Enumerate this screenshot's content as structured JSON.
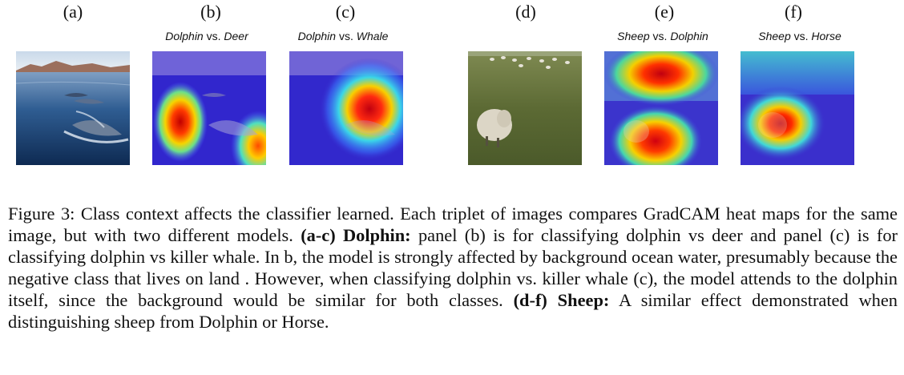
{
  "panels": [
    {
      "letter": "(a)",
      "subtitle_pre": "",
      "subtitle_vs": "",
      "subtitle_post": ""
    },
    {
      "letter": "(b)",
      "subtitle_pre": "Dolphin",
      "subtitle_vs": " vs. ",
      "subtitle_post": "Deer"
    },
    {
      "letter": "(c)",
      "subtitle_pre": "Dolphin",
      "subtitle_vs": " vs. ",
      "subtitle_post": "Whale"
    },
    {
      "letter": "(d)",
      "subtitle_pre": "",
      "subtitle_vs": "",
      "subtitle_post": ""
    },
    {
      "letter": "(e)",
      "subtitle_pre": "Sheep",
      "subtitle_vs": " vs. ",
      "subtitle_post": "Dolphin"
    },
    {
      "letter": "(f)",
      "subtitle_pre": "Sheep",
      "subtitle_vs": " vs. ",
      "subtitle_post": "Horse"
    }
  ],
  "caption": {
    "intro": "Figure 3: Class context affects the classifier learned. Each triplet of images compares GradCAM heat maps for the same image, but with two different models. ",
    "bold1": "(a-c) Dolphin:",
    "part2": " panel (b) is for classifying dolphin vs deer and panel (c) is for classifying dolphin vs killer whale. In b, the model is strongly affected by background ocean water, presumably because the negative class that lives on land . However, when classifying dolphin vs. killer whale (c), the model attends to the dolphin itself, since the background would be similar for both classes. ",
    "bold2": "(d-f) Sheep:",
    "part3": " A similar effect demonstrated when distinguishing sheep from Dolphin or Horse."
  }
}
